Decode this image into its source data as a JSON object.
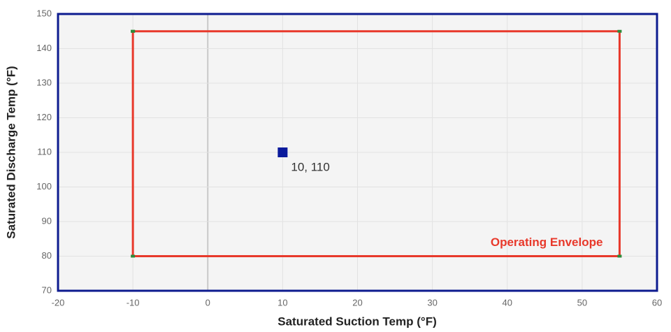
{
  "chart_data": {
    "type": "scatter",
    "x_label": "Saturated Suction Temp (°F)",
    "y_label": "Saturated Discharge Temp (°F)",
    "xlim": [
      -20,
      60
    ],
    "xticks": [
      -20,
      -10,
      0,
      10,
      20,
      30,
      40,
      50,
      60
    ],
    "ylim": [
      70,
      150
    ],
    "yticks": [
      70,
      80,
      90,
      100,
      110,
      120,
      130,
      140,
      150
    ],
    "grid": true,
    "series": [
      {
        "name": "Operating Envelope",
        "color": "#e8392b",
        "marker_color": "#2e8b3a",
        "kind": "line",
        "x": [
          -10,
          55,
          55,
          -10,
          -10
        ],
        "values": [
          145,
          145,
          80,
          80,
          145
        ]
      },
      {
        "color": "#0a1a9c",
        "kind": "point",
        "x": [
          10
        ],
        "values": [
          110
        ],
        "value_labels": [
          "10, 110"
        ]
      }
    ]
  }
}
